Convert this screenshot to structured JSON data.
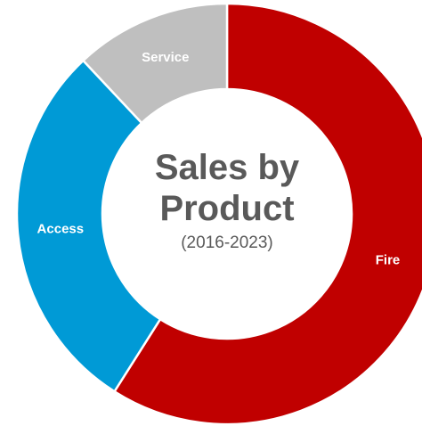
{
  "chart_data": {
    "type": "donut",
    "title": "Sales by Product",
    "subtitle": "(2016-2023)",
    "categories": [
      "Fire",
      "Access",
      "Service"
    ],
    "values": [
      59,
      29,
      12
    ],
    "colors": [
      "#c00000",
      "#009ad6",
      "#bfbfbf"
    ]
  }
}
